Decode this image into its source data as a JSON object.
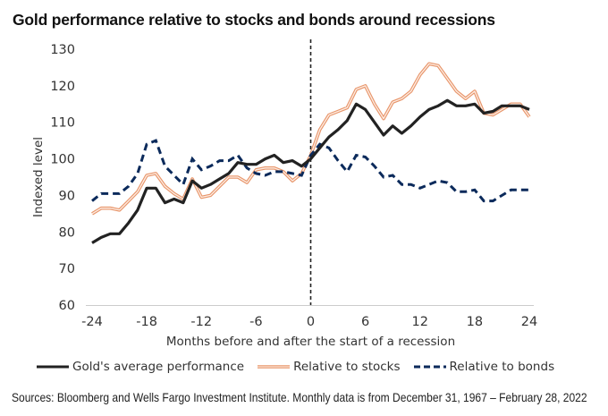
{
  "chart_data": {
    "type": "line",
    "title": "Gold performance relative to stocks and bonds around recessions",
    "xlabel": "Months before and after the start of a recession",
    "ylabel": "Indexed level",
    "xlim": [
      -24,
      24
    ],
    "ylim": [
      60,
      130
    ],
    "xticks": [
      -24,
      -18,
      -12,
      -6,
      0,
      6,
      12,
      18,
      24
    ],
    "yticks": [
      60,
      70,
      80,
      90,
      100,
      110,
      120,
      130
    ],
    "x_tick_labels": [
      "-24",
      "-18",
      "-12",
      "-6",
      "0",
      "6",
      "12",
      "18",
      "24"
    ],
    "y_tick_labels": [
      "60",
      "70",
      "80",
      "90",
      "100",
      "110",
      "120",
      "130"
    ],
    "grid": false,
    "reference_line": {
      "x": 0,
      "style": "dashed",
      "color": "#222222"
    },
    "legend_position": "bottom",
    "x": [
      -24,
      -23,
      -22,
      -21,
      -20,
      -19,
      -18,
      -17,
      -16,
      -15,
      -14,
      -13,
      -12,
      -11,
      -10,
      -9,
      -8,
      -7,
      -6,
      -5,
      -4,
      -3,
      -2,
      -1,
      0,
      1,
      2,
      3,
      4,
      5,
      6,
      7,
      8,
      9,
      10,
      11,
      12,
      13,
      14,
      15,
      16,
      17,
      18,
      19,
      20,
      21,
      22,
      23,
      24
    ],
    "series": [
      {
        "name": "Gold's average performance",
        "color": "#222222",
        "style": "solid",
        "values": [
          77,
          78.5,
          79.5,
          79.5,
          82.5,
          86,
          92,
          92,
          88,
          89,
          88,
          94,
          92,
          93,
          94.5,
          96,
          99,
          98.5,
          98.5,
          100,
          101,
          99,
          99.5,
          98,
          100,
          103,
          106,
          108,
          110.5,
          115,
          113.5,
          110,
          106.5,
          109,
          107,
          109,
          111.5,
          113.5,
          114.5,
          116,
          114.5,
          114.5,
          115,
          112.5,
          113,
          114.5,
          114.5,
          114.5,
          113.5
        ]
      },
      {
        "name": "Relative to stocks",
        "color": "#E8956A",
        "style": "double",
        "values": [
          85,
          86.5,
          86.5,
          86,
          88.5,
          91,
          95.5,
          96,
          92.5,
          90.5,
          89,
          94.5,
          89.5,
          90,
          92.5,
          95,
          95,
          93.5,
          97,
          97.5,
          97.5,
          96.5,
          94,
          96,
          101,
          108,
          112,
          113,
          114,
          119,
          120,
          115,
          111,
          115.5,
          116.5,
          118.5,
          123,
          126,
          125.5,
          122,
          118.5,
          116.5,
          118.5,
          112.5,
          112,
          113.5,
          115,
          115,
          111.5
        ]
      },
      {
        "name": "Relative to bonds",
        "color": "#0B2A5B",
        "style": "dashed",
        "values": [
          88.5,
          90.5,
          90.5,
          90.5,
          92.5,
          96,
          104,
          105,
          98,
          95.5,
          93,
          100,
          97,
          98,
          99.5,
          99.5,
          101,
          97.5,
          96,
          95.5,
          96.5,
          96.5,
          96,
          95.5,
          101,
          104,
          103,
          99.5,
          96.5,
          101,
          100.5,
          98,
          95,
          95.5,
          93,
          93,
          92,
          93,
          94,
          93.5,
          91,
          91,
          91.5,
          88.5,
          88.5,
          90,
          91.5,
          91.5,
          91.5
        ]
      }
    ],
    "legend": [
      {
        "label": "Gold's average performance",
        "style": "solid",
        "color": "#222222"
      },
      {
        "label": "Relative to stocks",
        "style": "double",
        "color": "#E8956A"
      },
      {
        "label": "Relative to bonds",
        "style": "dashed",
        "color": "#0B2A5B"
      }
    ]
  },
  "footer": {
    "source": "Sources: Bloomberg and Wells Fargo Investment Institute. Monthly data is from December 31, 1967 – February 28, 2022"
  }
}
